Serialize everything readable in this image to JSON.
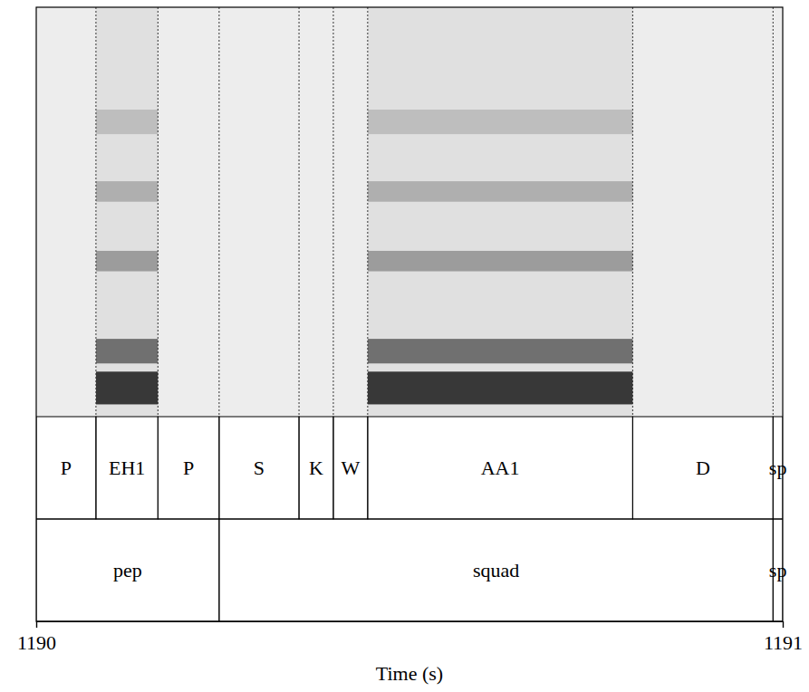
{
  "chart_data": {
    "type": "spectrogram",
    "x_label": "Time (s)",
    "xlim": [
      1190,
      1191
    ],
    "xticks": [
      1190,
      1191
    ],
    "tick_labels": "x",
    "tiers": [
      {
        "intervals": [
          {
            "start": 1190,
            "end": 1190.08,
            "label": "P"
          },
          {
            "start": 1190.08,
            "end": 1190.163,
            "label": "EH1"
          },
          {
            "start": 1190.163,
            "end": 1190.245,
            "label": "P"
          },
          {
            "start": 1190.245,
            "end": 1190.352,
            "label": "S"
          },
          {
            "start": 1190.352,
            "end": 1190.398,
            "label": "K"
          },
          {
            "start": 1190.398,
            "end": 1190.444,
            "label": "W"
          },
          {
            "start": 1190.444,
            "end": 1190.799,
            "label": "AA1"
          },
          {
            "start": 1190.799,
            "end": 1190.987,
            "label": "D"
          },
          {
            "start": 1190.987,
            "end": 1191,
            "label": "sp"
          }
        ]
      },
      {
        "intervals": [
          {
            "start": 1190,
            "end": 1190.245,
            "label": "pep"
          },
          {
            "start": 1190.245,
            "end": 1190.987,
            "label": "squad"
          },
          {
            "start": 1190.987,
            "end": 1191,
            "label": "sp"
          }
        ]
      }
    ]
  }
}
